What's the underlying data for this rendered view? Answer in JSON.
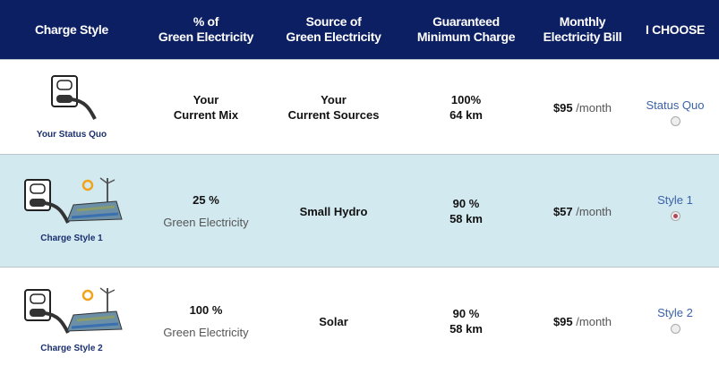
{
  "header": {
    "columns": [
      [
        "Charge Style"
      ],
      [
        "% of",
        "Green Electricity"
      ],
      [
        "Source of",
        "Green Electricity"
      ],
      [
        "Guaranteed",
        "Minimum Charge"
      ],
      [
        "Monthly",
        "Electricity Bill"
      ],
      [
        "I CHOOSE"
      ]
    ]
  },
  "rows": [
    {
      "caption": "Your Status Quo",
      "green": [
        "Your",
        "Current Mix"
      ],
      "source": [
        "Your",
        "Current Sources"
      ],
      "charge": [
        "100%",
        "64 km"
      ],
      "price": "$95",
      "unit": "/month",
      "choice": "Status Quo",
      "selected": false
    },
    {
      "caption": "Charge Style 1",
      "green": [
        "25 %",
        "Green Electricity"
      ],
      "source": [
        "Small Hydro"
      ],
      "charge": [
        "90 %",
        "58 km"
      ],
      "price": "$57",
      "unit": "/month",
      "choice": "Style 1",
      "selected": true
    },
    {
      "caption": "Charge Style 2",
      "green": [
        "100 %",
        "Green Electricity"
      ],
      "source": [
        "Solar"
      ],
      "charge": [
        "90 %",
        "58 km"
      ],
      "price": "$95",
      "unit": "/month",
      "choice": "Style 2",
      "selected": false
    }
  ]
}
